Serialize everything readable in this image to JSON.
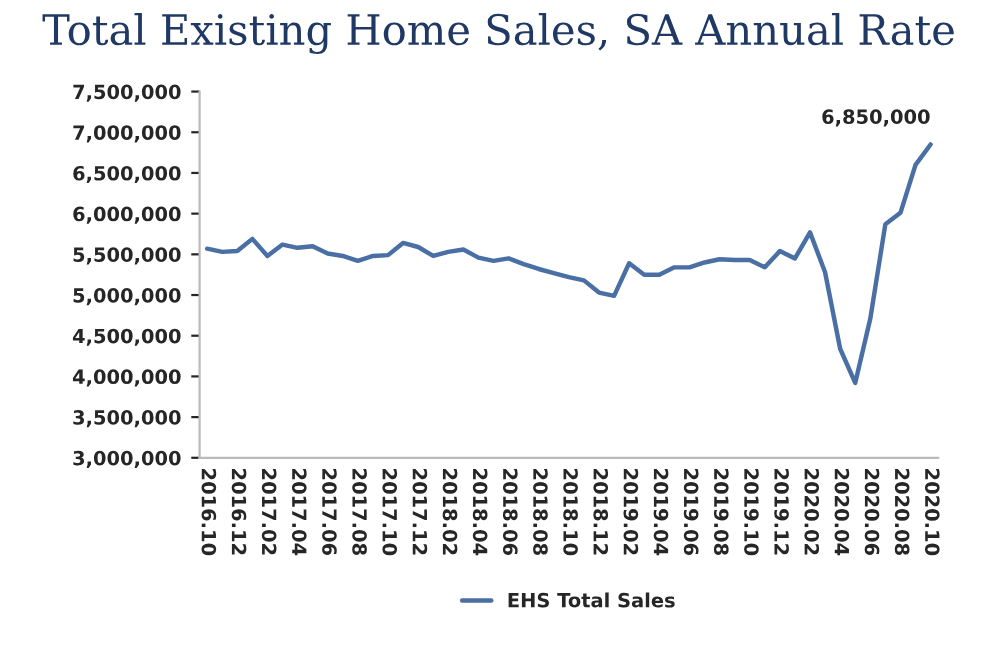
{
  "chart_data": {
    "type": "line",
    "title": "Total Existing Home Sales, SA Annual Rate",
    "categories": [
      "2016.10",
      null,
      "2016.12",
      null,
      "2017.02",
      null,
      "2017.04",
      null,
      "2017.06",
      null,
      "2017.08",
      null,
      "2017.10",
      null,
      "2017.12",
      null,
      "2018.02",
      null,
      "2018.04",
      null,
      "2018.06",
      null,
      "2018.08",
      null,
      "2018.10",
      null,
      "2018.12",
      null,
      "2019.02",
      null,
      "2019.04",
      null,
      "2019.06",
      null,
      "2019.08",
      null,
      "2019.10",
      null,
      "2019.12",
      null,
      "2020.02",
      null,
      "2020.04",
      null,
      "2020.06",
      null,
      "2020.08",
      null,
      "2020.10"
    ],
    "series": [
      {
        "name": "EHS Total Sales",
        "color": "#4a6fa5",
        "values": [
          5570000,
          5530000,
          5540000,
          5690000,
          5480000,
          5620000,
          5580000,
          5600000,
          5510000,
          5480000,
          5420000,
          5480000,
          5490000,
          5640000,
          5590000,
          5480000,
          5530000,
          5560000,
          5460000,
          5420000,
          5450000,
          5380000,
          5320000,
          5270000,
          5220000,
          5180000,
          5030000,
          4990000,
          5390000,
          5250000,
          5250000,
          5340000,
          5340000,
          5400000,
          5440000,
          5430000,
          5430000,
          5340000,
          5540000,
          5450000,
          5770000,
          5280000,
          4340000,
          3920000,
          4710000,
          5870000,
          6010000,
          6600000,
          6850000
        ]
      }
    ],
    "ylim": [
      3000000,
      7500000
    ],
    "yticks": [
      {
        "value": 3000000,
        "label": "3,000,000"
      },
      {
        "value": 3500000,
        "label": "3,500,000"
      },
      {
        "value": 4000000,
        "label": "4,000,000"
      },
      {
        "value": 4500000,
        "label": "4,500,000"
      },
      {
        "value": 5000000,
        "label": "5,000,000"
      },
      {
        "value": 5500000,
        "label": "5,500,000"
      },
      {
        "value": 6000000,
        "label": "6,000,000"
      },
      {
        "value": 6500000,
        "label": "6,500,000"
      },
      {
        "value": 7000000,
        "label": "7,000,000"
      },
      {
        "value": 7500000,
        "label": "7,500,000"
      }
    ],
    "annotations": [
      {
        "text": "6,850,000",
        "x": "2020.10",
        "y": 6850000
      }
    ],
    "legend": "bottom",
    "grid": false,
    "marker": "none",
    "line_style": "solid"
  }
}
